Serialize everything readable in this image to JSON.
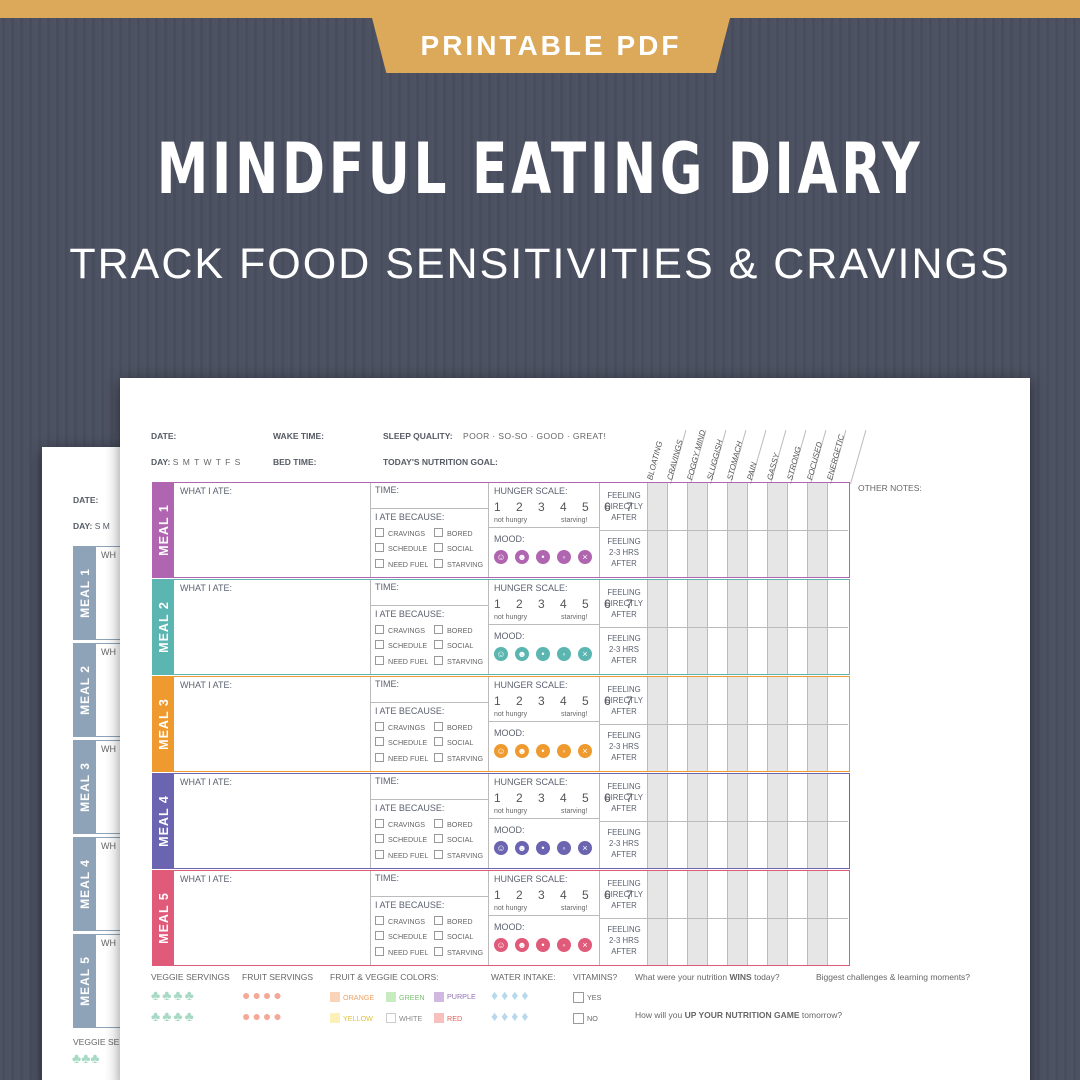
{
  "badge": "PRINTABLE PDF",
  "title": "MINDFUL EATING DIARY",
  "subtitle": "TRACK FOOD SENSITIVITIES & CRAVINGS",
  "header": {
    "date": "DATE:",
    "day": "DAY:",
    "days": "S M T W T F S",
    "wake": "WAKE TIME:",
    "bed": "BED TIME:",
    "sleep": "SLEEP QUALITY:",
    "sleep_options": "POOR · SO-SO · GOOD · GREAT!",
    "goal": "TODAY'S NUTRITION GOAL:",
    "other_notes": "OTHER NOTES:"
  },
  "back_page": {
    "date": "DATE:",
    "day": "DAY:",
    "days": "S M",
    "what": "WH",
    "veggie": "VEGGIE SE",
    "meals": [
      "MEAL 1",
      "MEAL 2",
      "MEAL 3",
      "MEAL 4",
      "MEAL 5"
    ]
  },
  "symptoms": [
    "BLOATING",
    "CRAVINGS",
    "FOGGY MIND",
    "SLUGGISH",
    "STOMACH",
    "PAIN",
    "GASSY",
    "STRONG",
    "FOCUSED",
    "ENERGETIC"
  ],
  "meal_labels": {
    "what": "WHAT I ATE:",
    "time": "TIME:",
    "because": "I ATE BECAUSE:",
    "reasons": [
      "CRAVINGS",
      "BORED",
      "SCHEDULE",
      "SOCIAL",
      "NEED FUEL",
      "STARVING"
    ],
    "hunger": "HUNGER SCALE:",
    "scale": "1 2 3 4 5 6 7",
    "not_hungry": "not hungry",
    "starving": "starving!",
    "mood": "MOOD:",
    "feeling_after_l1": "FEELING",
    "feeling_after_l2": "DIRECTLY",
    "feeling_after_l3": "AFTER",
    "feeling_later_l1": "FEELING",
    "feeling_later_l2": "2-3 HRS",
    "feeling_later_l3": "AFTER"
  },
  "meals": [
    {
      "label": "MEAL 1",
      "color": "#b065b0"
    },
    {
      "label": "MEAL 2",
      "color": "#5bb5b0"
    },
    {
      "label": "MEAL 3",
      "color": "#ef9a2e"
    },
    {
      "label": "MEAL 4",
      "color": "#6b64b0"
    },
    {
      "label": "MEAL 5",
      "color": "#e05a7a"
    }
  ],
  "footer": {
    "veggie": "VEGGIE SERVINGS",
    "fruit": "FRUIT SERVINGS",
    "colors_title": "FRUIT & VEGGIE COLORS:",
    "colors": {
      "orange": "ORANGE",
      "green": "GREEN",
      "purple": "PURPLE",
      "yellow": "YELLOW",
      "white": "WHITE",
      "red": "RED"
    },
    "water": "WATER INTAKE:",
    "vitamins": "VITAMINS?",
    "yes": "YES",
    "no": "NO",
    "wins_pre": "What were your nutrition",
    "wins_bold": "WINS",
    "wins_post": "today?",
    "challenges": "Biggest challenges & learning moments?",
    "up_pre": "How will you",
    "up_bold": "UP YOUR NUTRITION GAME",
    "up_post": "tomorrow?"
  },
  "colors": {
    "background": "#4a4f60",
    "badge": "#dca95a",
    "back_meal": "#8ea2b8"
  },
  "icons": [
    "broccoli-icon",
    "apple-icon",
    "water-drop-icon",
    "smiley-face-icon"
  ]
}
